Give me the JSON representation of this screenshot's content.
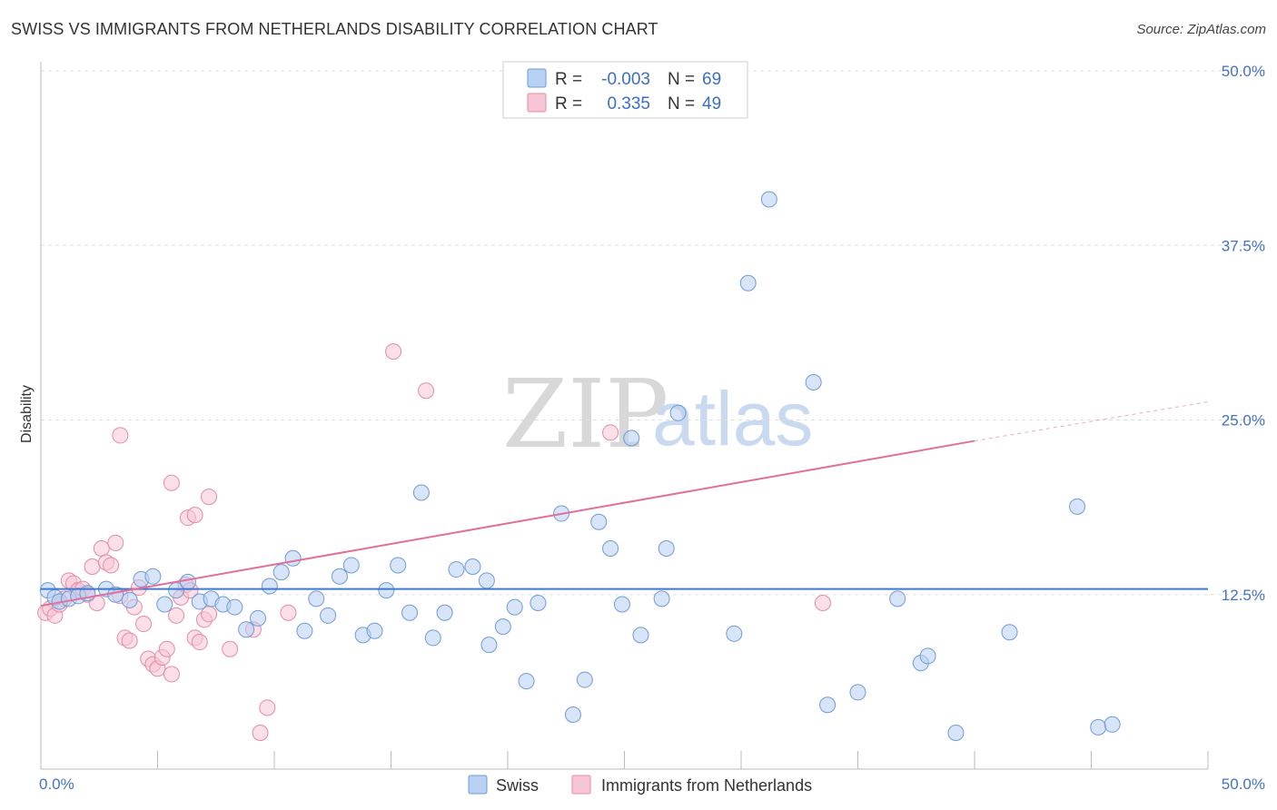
{
  "title": "SWISS VS IMMIGRANTS FROM NETHERLANDS DISABILITY CORRELATION CHART",
  "source": "Source: ZipAtlas.com",
  "watermark": {
    "part1": "ZIP",
    "part2": "atlas"
  },
  "colors": {
    "swiss_fill": "#b8d0f2",
    "swiss_stroke": "#6f9bd8",
    "swiss_line": "#3d79d0",
    "neth_fill": "#f7c6d6",
    "neth_stroke": "#e58aa7",
    "neth_line": "#e0709a",
    "grid": "#dddddd",
    "axis_text": "#4472c4"
  },
  "stats": {
    "swiss": {
      "r_label": "R =",
      "r_value": "-0.003",
      "n_label": "N =",
      "n_value": "69"
    },
    "neth": {
      "r_label": "R =",
      "r_value": "0.335",
      "n_label": "N =",
      "n_value": "49"
    }
  },
  "legend": {
    "swiss": "Swiss",
    "neth": "Immigrants from Netherlands"
  },
  "chart_data": {
    "type": "scatter",
    "title": "SWISS VS IMMIGRANTS FROM NETHERLANDS DISABILITY CORRELATION CHART",
    "xlabel": "",
    "ylabel": "Disability",
    "xlim": [
      0,
      50
    ],
    "ylim": [
      0,
      50
    ],
    "x_tick_labels": [
      "0.0%",
      "50.0%"
    ],
    "y_ticks": [
      12.5,
      25.0,
      37.5,
      50.0
    ],
    "y_tick_labels": [
      "12.5%",
      "25.0%",
      "37.5%",
      "50.0%"
    ],
    "grid": true,
    "legend_position": "bottom-center",
    "series": [
      {
        "name": "Swiss",
        "r": -0.003,
        "n": 69,
        "trend": {
          "x": [
            0,
            50
          ],
          "y": [
            12.9,
            12.9
          ]
        },
        "points": [
          [
            0.3,
            12.8
          ],
          [
            0.6,
            12.3
          ],
          [
            0.8,
            12.0
          ],
          [
            1.2,
            12.2
          ],
          [
            1.6,
            12.4
          ],
          [
            2.0,
            12.6
          ],
          [
            2.8,
            12.9
          ],
          [
            3.2,
            12.5
          ],
          [
            3.8,
            12.1
          ],
          [
            4.3,
            13.6
          ],
          [
            4.8,
            13.8
          ],
          [
            5.3,
            11.8
          ],
          [
            5.8,
            12.8
          ],
          [
            6.3,
            13.4
          ],
          [
            6.8,
            12.0
          ],
          [
            7.3,
            12.2
          ],
          [
            7.8,
            11.8
          ],
          [
            8.3,
            11.6
          ],
          [
            8.8,
            10.0
          ],
          [
            9.3,
            10.8
          ],
          [
            9.8,
            13.1
          ],
          [
            10.3,
            14.1
          ],
          [
            10.8,
            15.1
          ],
          [
            11.3,
            9.9
          ],
          [
            11.8,
            12.2
          ],
          [
            12.3,
            11.0
          ],
          [
            12.8,
            13.8
          ],
          [
            13.3,
            14.6
          ],
          [
            13.8,
            9.6
          ],
          [
            14.3,
            9.9
          ],
          [
            14.8,
            12.8
          ],
          [
            15.3,
            14.6
          ],
          [
            15.8,
            11.2
          ],
          [
            16.3,
            19.8
          ],
          [
            16.8,
            9.4
          ],
          [
            17.3,
            11.2
          ],
          [
            17.8,
            14.3
          ],
          [
            18.5,
            14.5
          ],
          [
            19.1,
            13.5
          ],
          [
            19.2,
            8.9
          ],
          [
            19.8,
            10.2
          ],
          [
            20.3,
            11.6
          ],
          [
            20.8,
            6.3
          ],
          [
            21.3,
            11.9
          ],
          [
            22.3,
            18.3
          ],
          [
            22.8,
            3.9
          ],
          [
            23.3,
            6.4
          ],
          [
            23.9,
            17.7
          ],
          [
            24.4,
            15.8
          ],
          [
            24.9,
            11.8
          ],
          [
            25.3,
            23.7
          ],
          [
            25.7,
            9.6
          ],
          [
            26.6,
            12.2
          ],
          [
            26.8,
            15.8
          ],
          [
            27.3,
            25.5
          ],
          [
            29.7,
            9.7
          ],
          [
            30.3,
            34.8
          ],
          [
            31.2,
            40.8
          ],
          [
            33.1,
            27.7
          ],
          [
            33.7,
            4.6
          ],
          [
            35.0,
            5.5
          ],
          [
            36.7,
            12.2
          ],
          [
            37.7,
            7.6
          ],
          [
            38.0,
            8.1
          ],
          [
            39.2,
            2.6
          ],
          [
            41.5,
            9.8
          ],
          [
            44.4,
            18.8
          ],
          [
            45.3,
            3.0
          ],
          [
            45.9,
            3.2
          ]
        ]
      },
      {
        "name": "Immigrants from Netherlands",
        "r": 0.335,
        "n": 49,
        "trend": {
          "x": [
            0,
            40
          ],
          "y": [
            11.7,
            23.5
          ],
          "dashed_to": {
            "x": 50,
            "y": 26.3
          }
        },
        "points": [
          [
            0.2,
            11.2
          ],
          [
            0.4,
            11.5
          ],
          [
            0.6,
            11.0
          ],
          [
            0.8,
            11.8
          ],
          [
            1.0,
            12.2
          ],
          [
            1.2,
            13.5
          ],
          [
            1.4,
            13.3
          ],
          [
            1.6,
            12.8
          ],
          [
            1.8,
            12.9
          ],
          [
            2.0,
            12.5
          ],
          [
            2.2,
            14.5
          ],
          [
            2.4,
            11.9
          ],
          [
            2.6,
            15.8
          ],
          [
            2.8,
            14.8
          ],
          [
            3.0,
            14.6
          ],
          [
            3.2,
            16.2
          ],
          [
            3.4,
            12.4
          ],
          [
            3.6,
            9.4
          ],
          [
            3.8,
            9.2
          ],
          [
            4.0,
            11.6
          ],
          [
            4.2,
            13.0
          ],
          [
            4.4,
            10.4
          ],
          [
            4.6,
            7.9
          ],
          [
            4.8,
            7.5
          ],
          [
            5.0,
            7.2
          ],
          [
            5.2,
            8.0
          ],
          [
            5.4,
            8.6
          ],
          [
            5.6,
            6.8
          ],
          [
            5.8,
            11.0
          ],
          [
            6.0,
            12.3
          ],
          [
            6.2,
            13.2
          ],
          [
            6.4,
            12.8
          ],
          [
            6.6,
            9.4
          ],
          [
            6.8,
            9.1
          ],
          [
            7.0,
            10.7
          ],
          [
            7.2,
            11.1
          ],
          [
            3.4,
            23.9
          ],
          [
            5.6,
            20.5
          ],
          [
            6.3,
            18.0
          ],
          [
            6.6,
            18.2
          ],
          [
            7.2,
            19.5
          ],
          [
            8.1,
            8.6
          ],
          [
            9.1,
            10.0
          ],
          [
            9.4,
            2.6
          ],
          [
            9.7,
            4.4
          ],
          [
            10.6,
            11.2
          ],
          [
            15.1,
            29.9
          ],
          [
            16.5,
            27.1
          ],
          [
            24.4,
            24.1
          ],
          [
            33.5,
            11.9
          ]
        ]
      }
    ]
  }
}
